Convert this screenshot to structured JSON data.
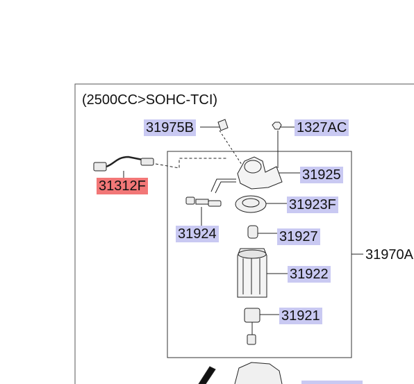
{
  "diagram": {
    "title": "(2500CC>SOHC-TCI)",
    "parts": {
      "p31975B": "31975B",
      "p1327AC": "1327AC",
      "p31312F": "31312F",
      "p31925": "31925",
      "p31923F": "31923F",
      "p31924": "31924",
      "p31927": "31927",
      "p31970A": "31970A",
      "p31922": "31922",
      "p31921": "31921"
    },
    "highlighted_part": "31312F",
    "colors": {
      "label_bg": "#c9c9f2",
      "highlight_bg": "#f27777",
      "line": "#222222"
    }
  }
}
